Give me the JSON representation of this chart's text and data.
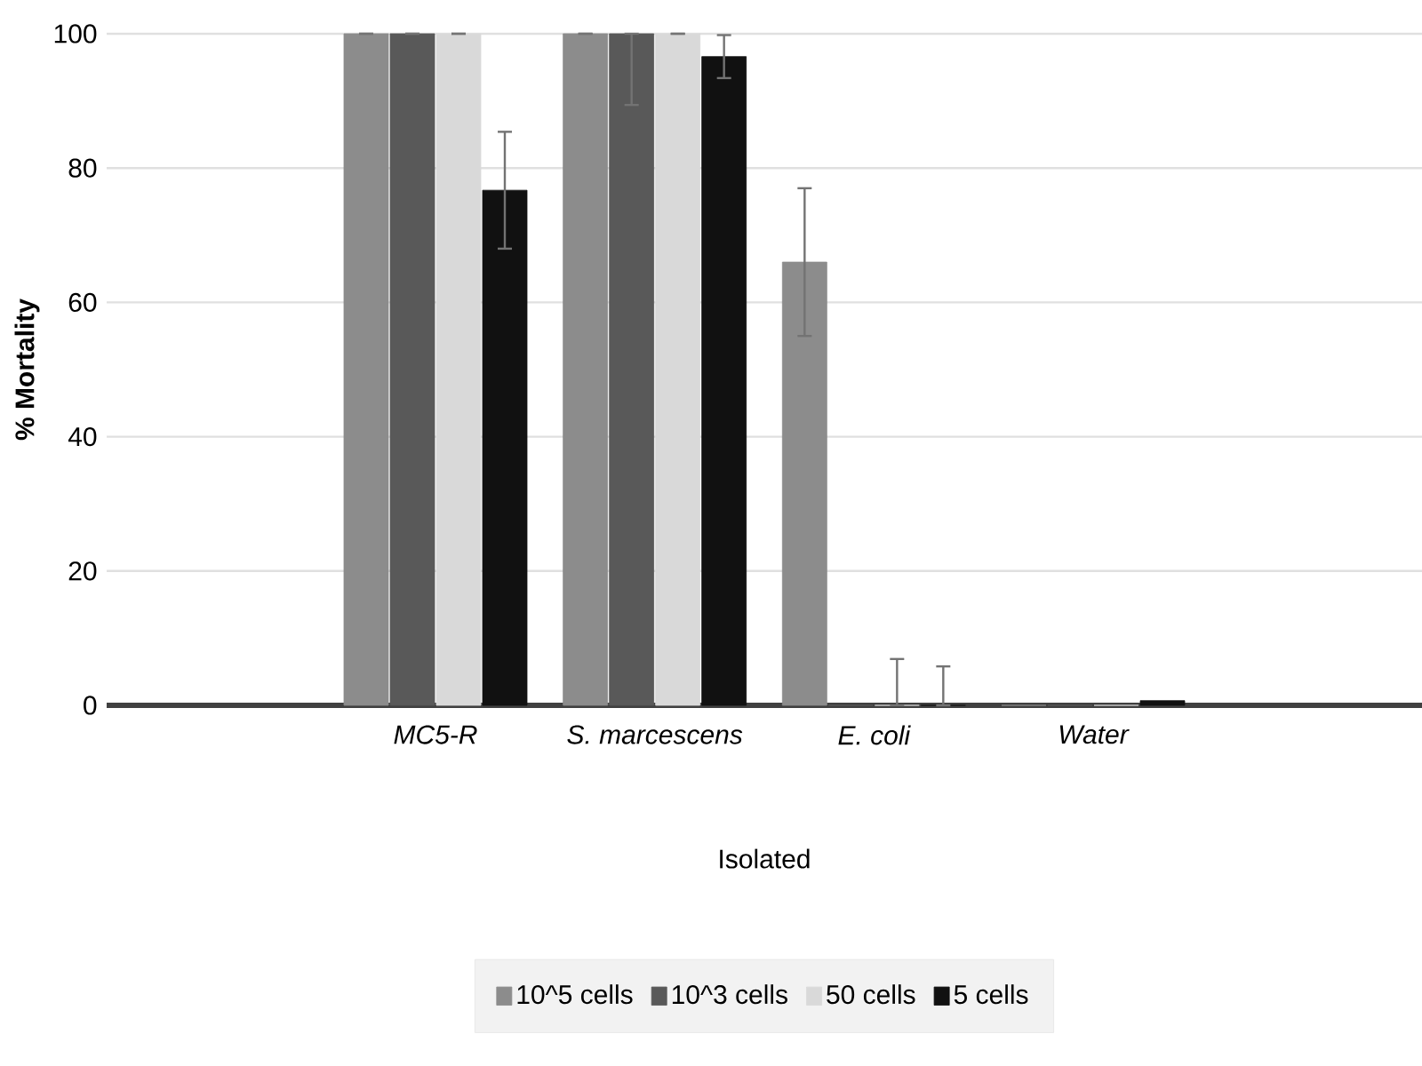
{
  "chart_data": {
    "type": "bar",
    "ylabel": "% Mortality",
    "xlabel": "Isolated",
    "categories": [
      null,
      "MC5-R",
      "S. marcescens",
      "E. coli",
      "Water",
      null
    ],
    "series": [
      {
        "name": "10^5 cells",
        "color": "#8c8c8c",
        "values": [
          null,
          100,
          100,
          66,
          0,
          null
        ],
        "errors": [
          null,
          0,
          0,
          11,
          null,
          null
        ]
      },
      {
        "name": "10^3 cells",
        "color": "#595959",
        "values": [
          null,
          100,
          100,
          0,
          0,
          null
        ],
        "errors": [
          null,
          0,
          [
            89.4,
            100
          ],
          null,
          null,
          null
        ]
      },
      {
        "name": "50 cells",
        "color": "#d9d9d9",
        "values": [
          null,
          100,
          100,
          0,
          0,
          null
        ],
        "errors": [
          null,
          0,
          0,
          [
            0,
            6.9
          ],
          null,
          null
        ]
      },
      {
        "name": "5 cells",
        "color": "#111111",
        "values": [
          null,
          76.7,
          96.6,
          0,
          0.7,
          null
        ],
        "errors": [
          null,
          8.7,
          3.2,
          [
            0,
            5.8
          ],
          null,
          null
        ]
      }
    ],
    "ylim": [
      0,
      100
    ],
    "yticks": [
      0,
      20,
      40,
      60,
      80,
      100
    ],
    "grid": "y",
    "legend": "bottom"
  }
}
